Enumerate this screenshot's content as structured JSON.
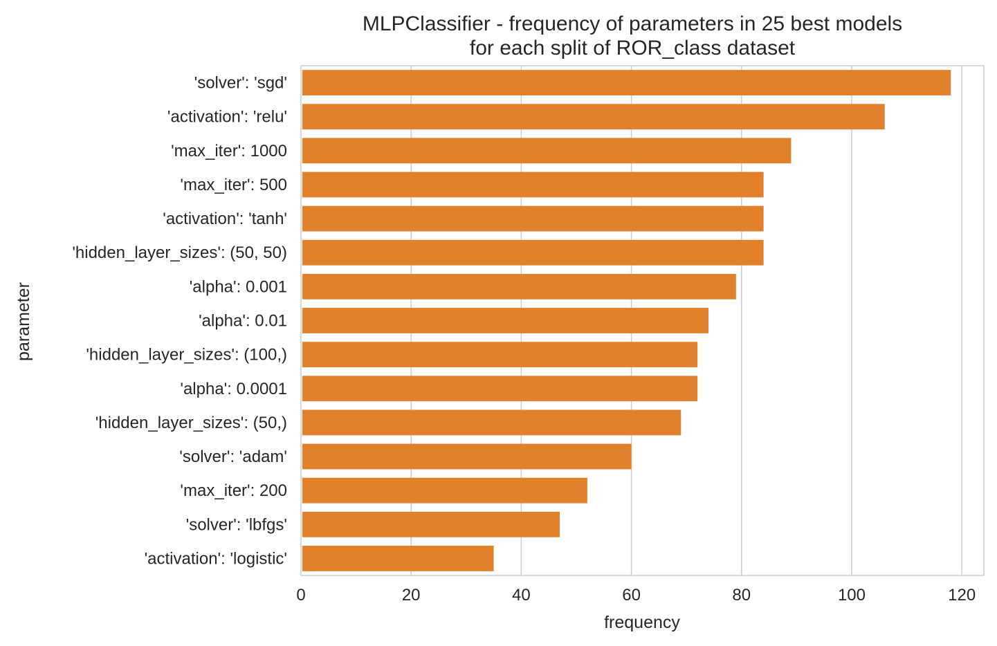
{
  "chart_data": {
    "type": "bar",
    "orientation": "horizontal",
    "title": "MLPClassifier - frequency of parameters in 25 best models\nfor each split of ROR_class dataset",
    "title_lines": [
      "MLPClassifier - frequency of parameters in 25 best models",
      "for each split of ROR_class dataset"
    ],
    "xlabel": "frequency",
    "ylabel": "parameter",
    "xlim": [
      0,
      124
    ],
    "xticks": [
      0,
      20,
      40,
      60,
      80,
      100,
      120
    ],
    "grid": true,
    "bar_color": "#e1812c",
    "categories": [
      "'solver': 'sgd'",
      "'activation': 'relu'",
      "'max_iter': 1000",
      "'max_iter': 500",
      "'activation': 'tanh'",
      "'hidden_layer_sizes': (50, 50)",
      "'alpha': 0.001",
      "'alpha': 0.01",
      "'hidden_layer_sizes': (100,)",
      "'alpha': 0.0001",
      "'hidden_layer_sizes': (50,)",
      "'solver': 'adam'",
      "'max_iter': 200",
      "'solver': 'lbfgs'",
      "'activation': 'logistic'"
    ],
    "values": [
      118,
      106,
      89,
      84,
      84,
      84,
      79,
      74,
      72,
      72,
      69,
      60,
      52,
      47,
      35
    ]
  }
}
